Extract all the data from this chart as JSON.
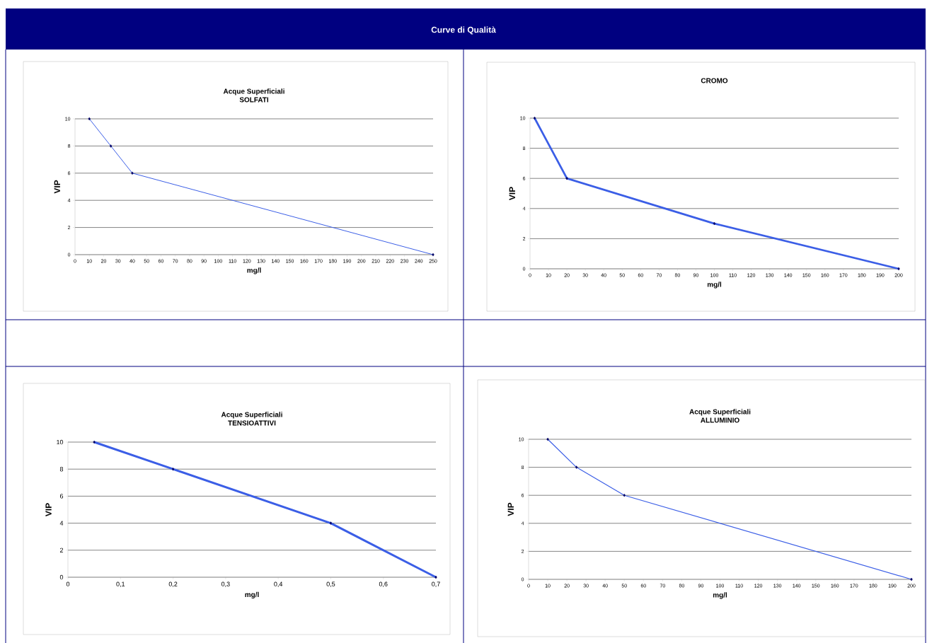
{
  "chart_data": [
    {
      "type": "other",
      "title": "Curve di Qualità"
    },
    {
      "type": "line",
      "title": "Acque Superficiali",
      "subtitle": "SOLFATI",
      "xlabel": "mg/l",
      "ylabel": "VIP",
      "x": [
        10,
        25,
        40,
        250
      ],
      "values": [
        10,
        8,
        6,
        0
      ],
      "color": "#3b5ee6",
      "marker": "diamond",
      "grid": "y",
      "xlim": [
        0,
        250
      ],
      "ylim": [
        0,
        10
      ],
      "xticks": [
        0,
        10,
        20,
        30,
        40,
        50,
        60,
        70,
        80,
        90,
        100,
        110,
        120,
        130,
        140,
        150,
        160,
        170,
        180,
        190,
        200,
        210,
        220,
        230,
        240,
        250
      ],
      "yticks": [
        0,
        2,
        4,
        6,
        8,
        10
      ]
    },
    {
      "type": "line",
      "title": "CROMO",
      "xlabel": "mg/l",
      "ylabel": "VIP",
      "x": [
        2.5,
        20,
        100,
        200
      ],
      "values": [
        10,
        6,
        3,
        0
      ],
      "color": "#3b5ee6",
      "marker": "diamond",
      "grid": "y",
      "xlim": [
        0,
        200
      ],
      "ylim": [
        0,
        10
      ],
      "xticks": [
        0,
        10,
        20,
        30,
        40,
        50,
        60,
        70,
        80,
        90,
        100,
        110,
        120,
        130,
        140,
        150,
        160,
        170,
        180,
        190,
        200
      ],
      "yticks": [
        0,
        2,
        4,
        6,
        8,
        10
      ]
    },
    {
      "type": "line",
      "title": "Acque Superficiali",
      "subtitle": "TENSIOATTIVI",
      "xlabel": "mg/l",
      "ylabel": "VIP",
      "x": [
        0.05,
        0.2,
        0.5,
        0.7
      ],
      "values": [
        10,
        8,
        4,
        0
      ],
      "color": "#3b5ee6",
      "marker": "diamond",
      "grid": "y",
      "xlim": [
        0,
        0.7
      ],
      "ylim": [
        0,
        10
      ],
      "xticks": [
        0,
        {
          "value": 0.1,
          "label": "0,1"
        },
        {
          "value": 0.2,
          "label": "0,2"
        },
        {
          "value": 0.3,
          "label": "0,3"
        },
        {
          "value": 0.4,
          "label": "0,4"
        },
        {
          "value": 0.5,
          "label": "0,5"
        },
        {
          "value": 0.6,
          "label": "0,6"
        },
        {
          "value": 0.7,
          "label": "0,7"
        }
      ],
      "yticks": [
        0,
        2,
        4,
        6,
        8,
        10
      ]
    },
    {
      "type": "line",
      "title": "Acque Superficiali",
      "subtitle": "ALLUMINIO",
      "xlabel": "mg/l",
      "ylabel": "VIP",
      "x": [
        10,
        25,
        50,
        200
      ],
      "values": [
        10,
        8,
        6,
        0
      ],
      "color": "#3b5ee6",
      "marker": "diamond",
      "grid": "y",
      "xlim": [
        0,
        200
      ],
      "ylim": [
        0,
        10
      ],
      "xticks": [
        0,
        10,
        20,
        30,
        40,
        50,
        60,
        70,
        80,
        90,
        100,
        110,
        120,
        130,
        140,
        150,
        160,
        170,
        180,
        190,
        200
      ],
      "yticks": [
        0,
        2,
        4,
        6,
        8,
        10
      ]
    }
  ]
}
